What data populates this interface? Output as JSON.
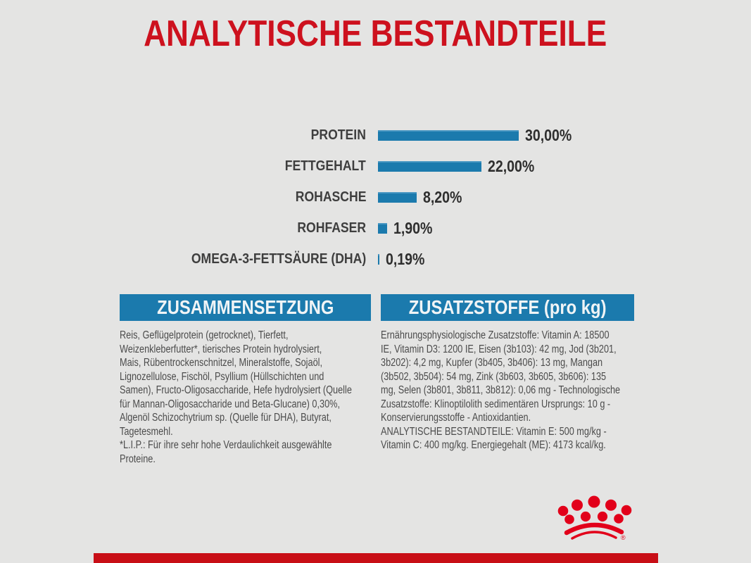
{
  "page": {
    "background_color": "#e4e4e3"
  },
  "title": {
    "text": "ANALYTISCHE BESTANDTEILE",
    "color": "#cd111e"
  },
  "chart_data": {
    "type": "bar",
    "orientation": "horizontal",
    "title": "ANALYTISCHE BESTANDTEILE",
    "categories": [
      "PROTEIN",
      "FETTGEHALT",
      "ROHASCHE",
      "ROHFASER",
      "OMEGA-3-FETTSÄURE (DHA)"
    ],
    "values": [
      30.0,
      22.0,
      8.2,
      1.9,
      0.19
    ],
    "value_labels": [
      "30,00%",
      "22,00%",
      "8,20%",
      "1,90%",
      "0,19%"
    ],
    "unit": "%",
    "xlim": [
      0,
      30
    ],
    "grid": false,
    "legend": false,
    "bar_color": "#1b7aad"
  },
  "sections": {
    "composition": {
      "header": "ZUSAMMENSETZUNG",
      "lines": [
        "Reis, Geflügelprotein (getrocknet), Tierfett,",
        "Weizenkleberfutter*, tierisches Protein hydrolysiert,",
        "Mais, Rübentrockenschnitzel, Mineralstoffe, Sojaöl,",
        "Lignozellulose, Fischöl, Psyllium (Hüllschichten und",
        "Samen), Fructo-Oligosaccharide, Hefe hydrolysiert (Quelle",
        "für Mannan-Oligosaccharide und Beta-Glucane) 0,30%,",
        "Algenöl Schizochytrium sp. (Quelle für DHA), Butyrat,",
        "Tagetesmehl.",
        "*L.I.P.: Für ihre sehr hohe Verdaulichkeit ausgewählte",
        "Proteine."
      ]
    },
    "additives": {
      "header": "ZUSATZSTOFFE (pro kg)",
      "lines": [
        "Ernährungsphysiologische Zusatzstoffe: Vitamin A: 18500",
        "IE, Vitamin D3: 1200 IE, Eisen (3b103): 42 mg, Jod (3b201,",
        "3b202): 4,2 mg, Kupfer (3b405, 3b406): 13 mg, Mangan",
        "(3b502, 3b504): 54 mg, Zink (3b603, 3b605, 3b606): 135",
        "mg, Selen (3b801, 3b811, 3b812): 0,06 mg - Technologische",
        "Zusatzstoffe: Klinoptilolith sedimentären Ursprungs: 10 g -",
        "Konservierungsstoffe - Antioxidantien.",
        "ANALYTISCHE BESTANDTEILE: Vitamin E: 500 mg/kg -",
        "Vitamin C: 400 mg/kg. Energiegehalt (ME): 4173 kcal/kg."
      ]
    }
  },
  "branding": {
    "logo": "royal-canin-crown",
    "logo_color": "#e2001a",
    "registered_mark": "®",
    "footer_bar_color": "#c80e16"
  },
  "colors": {
    "accent_blue": "#1b7aad",
    "title_red": "#cd111e",
    "body_text": "#4b4b4b"
  }
}
